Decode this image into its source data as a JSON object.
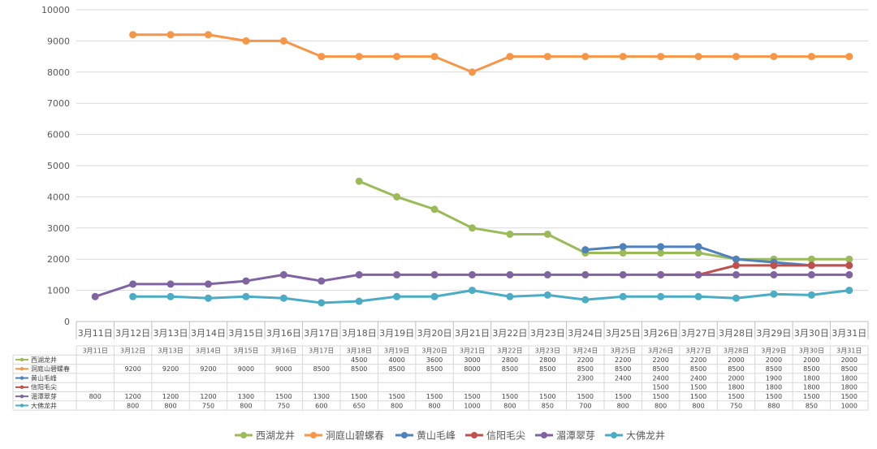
{
  "chart_data": {
    "type": "line",
    "categories": [
      "3月11日",
      "3月12日",
      "3月13日",
      "3月14日",
      "3月15日",
      "3月16日",
      "3月17日",
      "3月18日",
      "3月19日",
      "3月20日",
      "3月21日",
      "3月22日",
      "3月23日",
      "3月24日",
      "3月25日",
      "3月26日",
      "3月27日",
      "3月28日",
      "3月29日",
      "3月30日",
      "3月31日"
    ],
    "ylim": [
      0,
      10000
    ],
    "yticks": [
      0,
      1000,
      2000,
      3000,
      4000,
      5000,
      6000,
      7000,
      8000,
      9000,
      10000
    ],
    "legend_position": "bottom",
    "has_data_table": true,
    "series": [
      {
        "name": "西湖龙井",
        "color": "#9BBB59",
        "values": [
          null,
          null,
          null,
          null,
          null,
          null,
          null,
          4500,
          4000,
          3600,
          3000,
          2800,
          2800,
          2200,
          2200,
          2200,
          2200,
          2000,
          2000,
          2000,
          2000
        ]
      },
      {
        "name": "洞庭山碧螺春",
        "color": "#F79646",
        "values": [
          null,
          9200,
          9200,
          9200,
          9000,
          9000,
          8500,
          8500,
          8500,
          8500,
          8000,
          8500,
          8500,
          8500,
          8500,
          8500,
          8500,
          8500,
          8500,
          8500,
          8500
        ]
      },
      {
        "name": "黄山毛峰",
        "color": "#4F81BD",
        "values": [
          null,
          null,
          null,
          null,
          null,
          null,
          null,
          null,
          null,
          null,
          null,
          null,
          null,
          2300,
          2400,
          2400,
          2400,
          2000,
          1900,
          1800,
          1800
        ]
      },
      {
        "name": "信阳毛尖",
        "color": "#C0504D",
        "values": [
          null,
          null,
          null,
          null,
          null,
          null,
          null,
          null,
          null,
          null,
          null,
          null,
          null,
          null,
          null,
          1500,
          1500,
          1800,
          1800,
          1800,
          1800
        ]
      },
      {
        "name": "湄潭翠芽",
        "color": "#8064A2",
        "values": [
          800,
          1200,
          1200,
          1200,
          1300,
          1500,
          1300,
          1500,
          1500,
          1500,
          1500,
          1500,
          1500,
          1500,
          1500,
          1500,
          1500,
          1500,
          1500,
          1500,
          1500
        ]
      },
      {
        "name": "大佛龙井",
        "color": "#4BACC6",
        "values": [
          null,
          800,
          800,
          750,
          800,
          750,
          600,
          650,
          800,
          800,
          1000,
          800,
          850,
          700,
          800,
          800,
          800,
          750,
          880,
          850,
          1000
        ]
      }
    ]
  }
}
